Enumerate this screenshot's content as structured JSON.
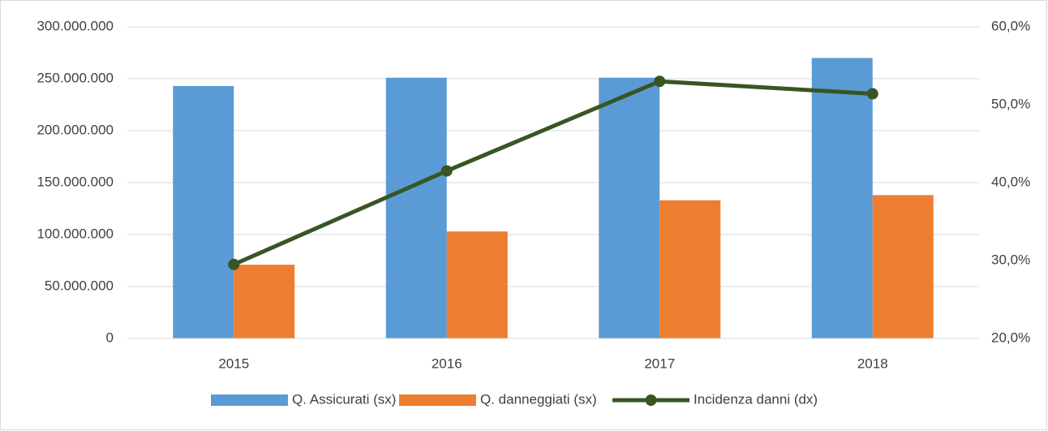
{
  "chart_data": {
    "type": "bar",
    "categories": [
      "2015",
      "2016",
      "2017",
      "2018"
    ],
    "series": [
      {
        "name": "Q. Assicurati (sx)",
        "color": "#5b9bd5",
        "type": "bar",
        "values": [
          243000000,
          251000000,
          251000000,
          270000000
        ]
      },
      {
        "name": "Q. danneggiati (sx)",
        "color": "#ed7d31",
        "type": "bar",
        "values": [
          71000000,
          103000000,
          133000000,
          138000000
        ]
      },
      {
        "name": "Incidenza danni (dx)",
        "color": "#375623",
        "type": "line",
        "axis": "y2",
        "values": [
          29.5,
          41.5,
          53.0,
          51.4
        ]
      }
    ],
    "ylim": [
      0,
      300000000
    ],
    "yticks": [
      0,
      {
        "value": 50000000,
        "label": "50.000.000"
      },
      {
        "value": 100000000,
        "label": "100.000.000"
      },
      {
        "value": 150000000,
        "label": "150.000.000"
      },
      {
        "value": 200000000,
        "label": "200.000.000"
      },
      {
        "value": 250000000,
        "label": "250.000.000"
      },
      {
        "value": 300000000,
        "label": "300.000.000"
      }
    ],
    "y2lim": [
      20,
      60
    ],
    "y2ticks": [
      {
        "value": 20,
        "label": "20,0%"
      },
      {
        "value": 30,
        "label": "30,0%"
      },
      {
        "value": 40,
        "label": "40,0%"
      },
      {
        "value": 50,
        "label": "50,0%"
      },
      {
        "value": 60,
        "label": "60,0%"
      }
    ],
    "grid": true,
    "legend": "bottom"
  }
}
